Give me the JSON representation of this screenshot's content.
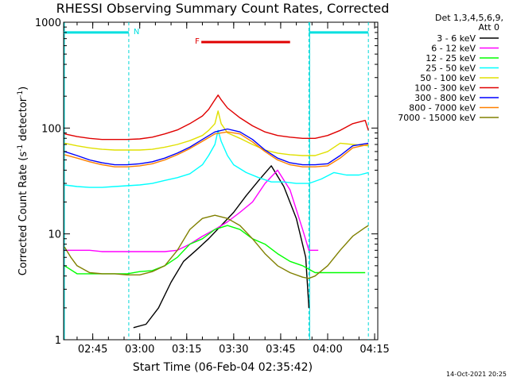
{
  "chart_data": {
    "type": "line",
    "title": "RHESSI Observing Summary Count Rates, Corrected",
    "xlabel": "Start Time (06-Feb-04 02:35:42)",
    "ylabel_main": "Corrected Count Rate (s",
    "ylabel_exp1": "-1",
    "ylabel_mid": " detector",
    "ylabel_exp2": "-1",
    "ylabel_end": ")",
    "y_scale": "log",
    "ylim": [
      1,
      1000
    ],
    "xlim": [
      "02:35:42",
      "04:16:00"
    ],
    "x_ticks": [
      "02:45",
      "03:00",
      "03:15",
      "03:30",
      "03:45",
      "04:00",
      "04:15"
    ],
    "y_ticks": [
      "1",
      "10",
      "100",
      "1000"
    ],
    "grid": false,
    "legend_position": "right",
    "detector_info_line1": "Det 1,3,4,5,6,9,",
    "detector_info_line2": "Att 0",
    "timestamp": "14-Oct-2021 20:25",
    "annotations": {
      "N": {
        "label": "N",
        "color": "#00e0e0",
        "segments": [
          [
            "02:35:42",
            "02:56:30"
          ],
          [
            "03:54:00",
            "04:13:00"
          ]
        ],
        "y": 800
      },
      "F": {
        "label": "F",
        "color": "#e00000",
        "segments": [
          [
            "03:19:40",
            "03:48:00"
          ]
        ],
        "y": 650
      }
    },
    "night_boundaries": [
      "02:56:30",
      "03:54:00"
    ],
    "series": [
      {
        "name": "3 - 6 keV",
        "color": "#000000",
        "x": [
          "02:58",
          "03:02",
          "03:06",
          "03:10",
          "03:14",
          "03:18",
          "03:22",
          "03:26",
          "03:30",
          "03:34",
          "03:38",
          "03:42",
          "03:46",
          "03:50",
          "03:53",
          "03:54"
        ],
        "y": [
          1.3,
          1.4,
          2,
          3.5,
          5.5,
          7,
          9,
          12,
          16,
          23,
          32,
          44,
          28,
          14,
          6,
          2
        ]
      },
      {
        "name": "6 - 12 keV",
        "color": "#ff00ff",
        "x": [
          "02:36",
          "02:40",
          "02:44",
          "02:48",
          "02:52",
          "02:56",
          "03:00",
          "03:04",
          "03:08",
          "03:12",
          "03:16",
          "03:20",
          "03:24",
          "03:28",
          "03:32",
          "03:36",
          "03:40",
          "03:44",
          "03:48",
          "03:52",
          "03:54",
          "03:55",
          "03:57"
        ],
        "y": [
          7,
          7,
          7,
          6.8,
          6.8,
          6.8,
          6.8,
          6.8,
          6.8,
          7,
          8,
          9.5,
          11,
          13,
          16,
          20,
          30,
          40,
          26,
          11,
          7,
          7,
          7
        ]
      },
      {
        "name": "12 - 25 keV",
        "color": "#00ff00",
        "x": [
          "02:36",
          "02:40",
          "02:44",
          "02:48",
          "02:52",
          "02:56",
          "03:00",
          "03:04",
          "03:08",
          "03:12",
          "03:16",
          "03:20",
          "03:24",
          "03:28",
          "03:32",
          "03:36",
          "03:40",
          "03:44",
          "03:48",
          "03:52",
          "03:56",
          "04:00",
          "04:04",
          "04:08",
          "04:12"
        ],
        "y": [
          5,
          4.2,
          4.2,
          4.2,
          4.2,
          4.2,
          4.4,
          4.5,
          5,
          6,
          8,
          9,
          11,
          12,
          11,
          9,
          8,
          6.5,
          5.5,
          5,
          4.3,
          4.3,
          4.3,
          4.3,
          4.3
        ]
      },
      {
        "name": "25 - 50 keV",
        "color": "#00ffff",
        "x": [
          "02:36",
          "02:40",
          "02:44",
          "02:48",
          "02:52",
          "02:56",
          "03:00",
          "03:04",
          "03:08",
          "03:12",
          "03:16",
          "03:20",
          "03:22",
          "03:24",
          "03:25",
          "03:26",
          "03:28",
          "03:30",
          "03:34",
          "03:38",
          "03:42",
          "03:46",
          "03:50",
          "03:54",
          "03:58",
          "04:02",
          "04:06",
          "04:10",
          "04:13"
        ],
        "y": [
          29,
          28,
          27.5,
          27.5,
          28,
          28.5,
          29,
          30,
          32,
          34,
          37,
          45,
          55,
          70,
          95,
          75,
          55,
          45,
          38,
          34,
          31,
          31,
          30,
          30,
          33,
          38,
          36,
          36,
          38
        ]
      },
      {
        "name": "50 - 100 keV",
        "color": "#e0e000",
        "x": [
          "02:36",
          "02:40",
          "02:44",
          "02:48",
          "02:52",
          "02:56",
          "03:00",
          "03:04",
          "03:08",
          "03:12",
          "03:16",
          "03:20",
          "03:22",
          "03:24",
          "03:25",
          "03:26",
          "03:28",
          "03:32",
          "03:36",
          "03:40",
          "03:44",
          "03:48",
          "03:52",
          "03:56",
          "04:00",
          "04:04",
          "04:08",
          "04:13"
        ],
        "y": [
          72,
          68,
          65,
          63,
          62,
          62,
          62,
          63,
          66,
          70,
          76,
          85,
          95,
          110,
          145,
          110,
          90,
          80,
          70,
          62,
          58,
          56,
          55,
          55,
          60,
          72,
          70,
          68
        ]
      },
      {
        "name": "100 - 300 keV",
        "color": "#e00000",
        "x": [
          "02:36",
          "02:40",
          "02:44",
          "02:48",
          "02:52",
          "02:56",
          "03:00",
          "03:04",
          "03:08",
          "03:12",
          "03:16",
          "03:20",
          "03:22",
          "03:24",
          "03:25",
          "03:26",
          "03:28",
          "03:32",
          "03:36",
          "03:40",
          "03:44",
          "03:48",
          "03:52",
          "03:56",
          "04:00",
          "04:04",
          "04:08",
          "04:12",
          "04:13"
        ],
        "y": [
          88,
          83,
          80,
          78,
          78,
          78,
          79,
          82,
          88,
          96,
          110,
          130,
          150,
          185,
          205,
          185,
          155,
          125,
          105,
          92,
          85,
          82,
          80,
          80,
          85,
          95,
          110,
          118,
          95
        ]
      },
      {
        "name": "300 - 800 keV",
        "color": "#0000ff",
        "x": [
          "02:36",
          "02:40",
          "02:44",
          "02:48",
          "02:52",
          "02:56",
          "03:00",
          "03:04",
          "03:08",
          "03:12",
          "03:16",
          "03:20",
          "03:24",
          "03:28",
          "03:32",
          "03:36",
          "03:40",
          "03:44",
          "03:48",
          "03:52",
          "03:56",
          "04:00",
          "04:04",
          "04:08",
          "04:13"
        ],
        "y": [
          60,
          55,
          50,
          47,
          45,
          45,
          46,
          48,
          52,
          58,
          66,
          78,
          92,
          98,
          92,
          78,
          62,
          52,
          47,
          45,
          45,
          46,
          55,
          68,
          72
        ]
      },
      {
        "name": "800 - 7000 keV",
        "color": "#ff8000",
        "x": [
          "02:36",
          "02:40",
          "02:44",
          "02:48",
          "02:52",
          "02:56",
          "03:00",
          "03:04",
          "03:08",
          "03:12",
          "03:16",
          "03:20",
          "03:24",
          "03:28",
          "03:32",
          "03:36",
          "03:40",
          "03:44",
          "03:48",
          "03:52",
          "03:56",
          "04:00",
          "04:04",
          "04:08",
          "04:13"
        ],
        "y": [
          56,
          52,
          48,
          45,
          43,
          43,
          44,
          46,
          50,
          56,
          64,
          75,
          88,
          92,
          88,
          74,
          60,
          50,
          45,
          43,
          43,
          44,
          52,
          65,
          70
        ]
      },
      {
        "name": "7000 - 15000 keV",
        "color": "#808000",
        "x": [
          "02:36",
          "02:38",
          "02:40",
          "02:44",
          "02:48",
          "02:52",
          "02:56",
          "03:00",
          "03:04",
          "03:08",
          "03:12",
          "03:16",
          "03:20",
          "03:24",
          "03:28",
          "03:32",
          "03:36",
          "03:40",
          "03:44",
          "03:48",
          "03:52",
          "03:54",
          "03:56",
          "04:00",
          "04:04",
          "04:08",
          "04:12",
          "04:13"
        ],
        "y": [
          7.5,
          6,
          5,
          4.3,
          4.2,
          4.2,
          4.1,
          4.1,
          4.4,
          5,
          7,
          11,
          14,
          15,
          14,
          12,
          9,
          6.5,
          5,
          4.3,
          3.9,
          3.8,
          4,
          5,
          7,
          9.5,
          11.5,
          12
        ]
      }
    ]
  }
}
